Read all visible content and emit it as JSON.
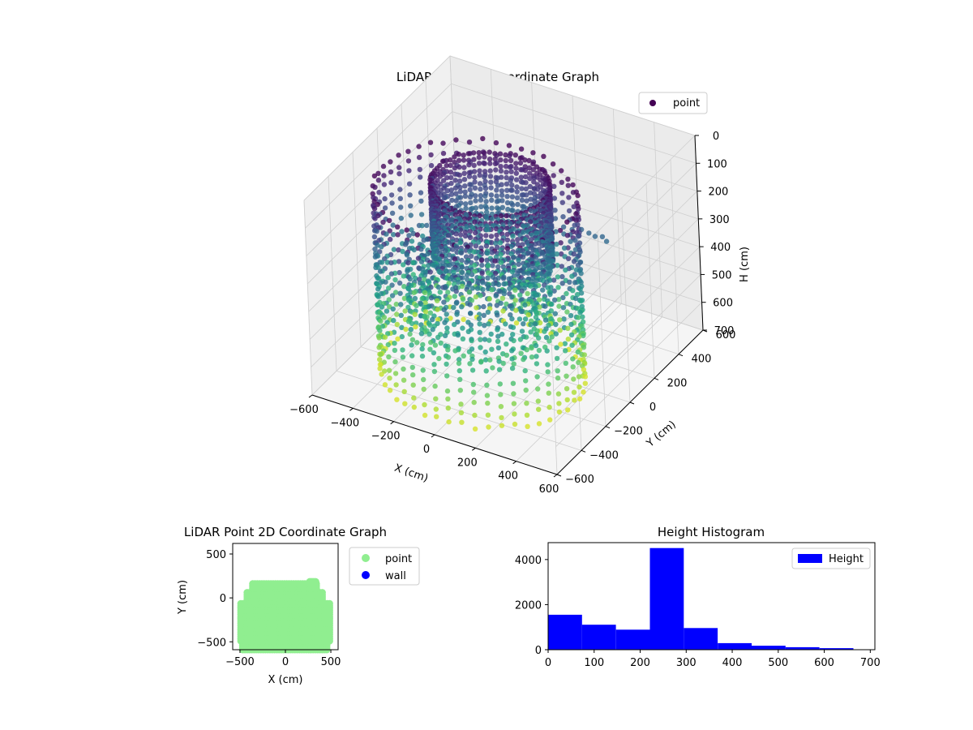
{
  "chart_data": [
    {
      "type": "scatter3d",
      "title": "LiDAR Point 3D Coordinate Graph",
      "xlabel": "X (cm)",
      "ylabel": "Y (cm)",
      "zlabel": "H (cm)",
      "xlim": [
        -600,
        600
      ],
      "ylim": [
        -600,
        600
      ],
      "zlim": [
        0,
        700
      ],
      "z_inverted": true,
      "x_ticks": [
        "−600",
        "−400",
        "−200",
        "0",
        "200",
        "400",
        "600"
      ],
      "y_ticks": [
        "−600",
        "−400",
        "−200",
        "0",
        "200",
        "400",
        "600"
      ],
      "z_ticks": [
        "0",
        "100",
        "200",
        "300",
        "400",
        "500",
        "600",
        "700"
      ],
      "grid": true,
      "legend": {
        "placement": "top-right",
        "entries": [
          {
            "label": "point",
            "color": "#440154"
          }
        ]
      },
      "colormap": "viridis",
      "structure": {
        "outer_ring": {
          "radius_x": 450,
          "radius_y": 380,
          "center_y": -200
        },
        "inner_ring": {
          "radius_x": 260,
          "radius_y": 230,
          "center_y": -80
        },
        "height_range": [
          0,
          700
        ]
      }
    },
    {
      "type": "scatter",
      "title": "LiDAR Point 2D Coordinate Graph",
      "xlabel": "X (cm)",
      "ylabel": "Y (cm)",
      "xlim": [
        -580,
        580
      ],
      "ylim": [
        -590,
        620
      ],
      "x_ticks": [
        -500,
        0,
        500
      ],
      "y_ticks": [
        -500,
        0,
        500
      ],
      "x_tick_labels": [
        "−500",
        "0",
        "500"
      ],
      "y_tick_labels": [
        "−500",
        "0",
        "500"
      ],
      "legend": {
        "placement": "outside-right",
        "entries": [
          {
            "label": "point",
            "color": "#90ee90"
          },
          {
            "label": "wall",
            "color": "#0000ff"
          }
        ]
      },
      "shape": {
        "x_range": [
          -490,
          490
        ],
        "y_range": [
          -590,
          160
        ],
        "top_bump": {
          "x": [
            270,
            340
          ],
          "y": 180
        }
      }
    },
    {
      "type": "bar",
      "title": "Height Histogram",
      "xlim": [
        0,
        710
      ],
      "ylim": [
        0,
        4750
      ],
      "x_ticks": [
        0,
        100,
        200,
        300,
        400,
        500,
        600,
        700
      ],
      "y_ticks": [
        0,
        2000,
        4000
      ],
      "bin_edges": [
        0,
        73.7,
        147.4,
        221.1,
        294.8,
        368.5,
        442.2,
        515.9,
        589.6,
        663.3
      ],
      "values": [
        1550,
        1110,
        890,
        4510,
        960,
        290,
        175,
        110,
        70
      ],
      "color": "#0000ff",
      "legend": {
        "placement": "top-right",
        "entries": [
          {
            "label": "Height",
            "color": "#0000ff"
          }
        ]
      }
    }
  ]
}
